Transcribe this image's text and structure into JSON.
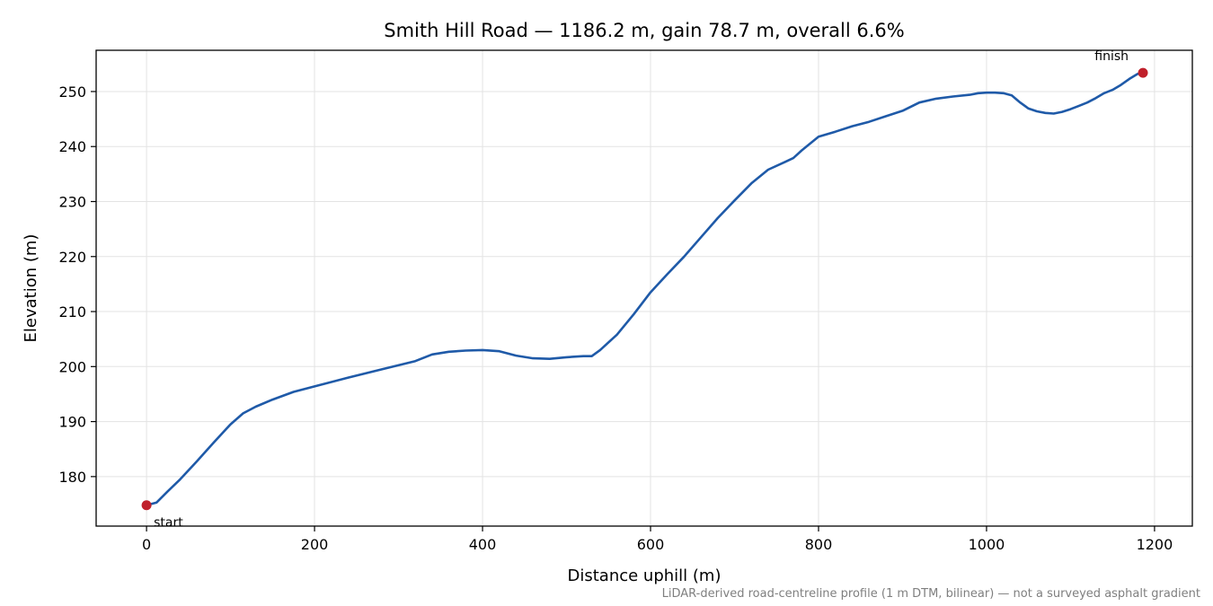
{
  "chart_data": {
    "type": "line",
    "title": "Smith Hill Road — 1186.2 m, gain 78.7 m, overall 6.6%",
    "xlabel": "Distance uphill (m)",
    "ylabel": "Elevation (m)",
    "xlim": [
      -60,
      1245
    ],
    "ylim": [
      171,
      257.5
    ],
    "xticks": [
      0,
      200,
      400,
      600,
      800,
      1000,
      1200
    ],
    "yticks": [
      180,
      190,
      200,
      210,
      220,
      230,
      240,
      250
    ],
    "grid": true,
    "footnote": "LiDAR-derived road-centreline profile (1 m DTM, bilinear) — not a surveyed asphalt gradient",
    "line_color": "#1f5aa8",
    "marker_color": "#c0202b",
    "series": [
      {
        "x": [
          0,
          12,
          25,
          40,
          60,
          80,
          100,
          115,
          130,
          150,
          175,
          200,
          240,
          280,
          320,
          340,
          360,
          380,
          400,
          420,
          440,
          460,
          480,
          500,
          520,
          530,
          540,
          560,
          580,
          600,
          620,
          640,
          660,
          680,
          700,
          720,
          740,
          760,
          770,
          780,
          800,
          820,
          840,
          860,
          880,
          900,
          920,
          940,
          960,
          980,
          990,
          1000,
          1010,
          1020,
          1030,
          1040,
          1050,
          1060,
          1070,
          1080,
          1090,
          1100,
          1110,
          1120,
          1130,
          1140,
          1150,
          1160,
          1170,
          1180,
          1186.2
        ],
        "y": [
          174.8,
          175.3,
          177.3,
          179.5,
          182.8,
          186.2,
          189.5,
          191.5,
          192.7,
          194.0,
          195.4,
          196.4,
          198.0,
          199.5,
          201.0,
          202.2,
          202.7,
          202.9,
          203.0,
          202.8,
          202.0,
          201.5,
          201.4,
          201.7,
          201.9,
          201.9,
          203.0,
          205.8,
          209.5,
          213.5,
          216.8,
          220.0,
          223.5,
          227.0,
          230.2,
          233.3,
          235.8,
          237.2,
          237.9,
          239.3,
          241.8,
          242.7,
          243.7,
          244.5,
          245.5,
          246.5,
          248.0,
          248.7,
          249.1,
          249.4,
          249.7,
          249.8,
          249.8,
          249.7,
          249.3,
          248.0,
          246.9,
          246.4,
          246.1,
          246.0,
          246.3,
          246.8,
          247.4,
          248.0,
          248.8,
          249.7,
          250.3,
          251.2,
          252.3,
          253.2,
          253.4
        ]
      }
    ],
    "annotations": [
      {
        "text": "start",
        "x": 0,
        "y": 174.8
      },
      {
        "text": "finish",
        "x": 1186.2,
        "y": 253.4
      }
    ]
  }
}
